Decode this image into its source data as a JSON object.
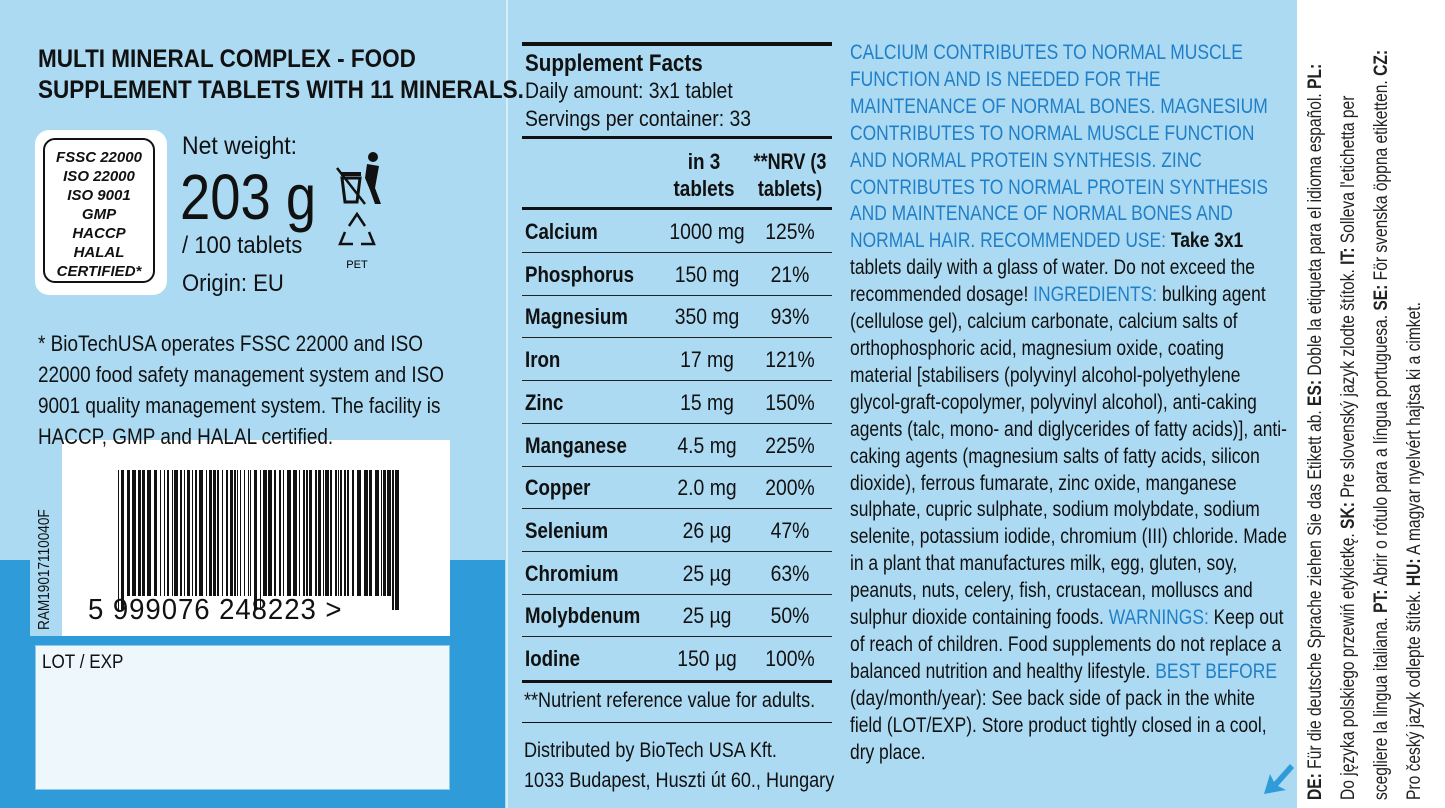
{
  "left": {
    "title": [
      "MULTI MINERAL COMPLEX - FOOD",
      "SUPPLEMENT TABLETS WITH 11 MINERALS."
    ],
    "badge": [
      "FSSC 22000",
      "ISO 22000",
      "ISO 9001",
      "GMP",
      "HACCP",
      "HALAL",
      "CERTIFIED*"
    ],
    "net_weight_label": "Net weight:",
    "net_weight": "203 g",
    "count": "/ 100 tablets",
    "origin": "Origin: EU",
    "recycle_code": "PET",
    "footnote": "* BioTechUSA operates FSSC 22000 and ISO 22000 food safety management system and ISO 9001 quality management system. The facility is HACCP, GMP and HALAL certified.",
    "batch_code": "RAM19017110040F",
    "barcode_number": "5 999076 248223 >",
    "lot_label": "LOT / EXP"
  },
  "supplement_facts": {
    "title": "Supplement Facts",
    "daily_amount": "Daily amount: 3x1 tablet",
    "servings": "Servings per container: 33",
    "columns": [
      "in 3 tablets",
      "**NRV (3 tablets)"
    ],
    "rows": [
      [
        "Calcium",
        "1000 mg",
        "125%"
      ],
      [
        "Phosphorus",
        "150 mg",
        "21%"
      ],
      [
        "Magnesium",
        "350 mg",
        "93%"
      ],
      [
        "Iron",
        "17 mg",
        "121%"
      ],
      [
        "Zinc",
        "15 mg",
        "150%"
      ],
      [
        "Manganese",
        "4.5 mg",
        "225%"
      ],
      [
        "Copper",
        "2.0 mg",
        "200%"
      ],
      [
        "Selenium",
        "26 µg",
        "47%"
      ],
      [
        "Chromium",
        "25 µg",
        "63%"
      ],
      [
        "Molybdenum",
        "25 µg",
        "50%"
      ],
      [
        "Iodine",
        "150 µg",
        "100%"
      ]
    ],
    "footnote": "**Nutrient reference value for adults.",
    "distributor": [
      "Distributed by BioTech USA Kft.",
      "1033 Budapest, Huszti út 60., Hungary"
    ]
  },
  "right": {
    "segments": [
      {
        "text": "CALCIUM CONTRIBUTES TO NORMAL MUSCLE FUNCTION AND IS NEEDED FOR THE MAINTENANCE OF NORMAL BONES. MAGNESIUM CONTRIBUTES TO NORMAL MUSCLE FUNCTION AND NORMAL PROTEIN SYNTHESIS. ZINC CONTRIBUTES TO NORMAL PROTEIN SYNTHESIS AND MAINTENANCE OF NORMAL BONES AND NORMAL HAIR. RECOMMENDED USE:",
        "color": "#1f7fc8"
      },
      {
        "text": "Take 3x1",
        "color": "#111111",
        "weight": "bold"
      },
      {
        "text": "tablets daily with a glass of water. Do not exceed the recommended dosage!",
        "color": "#111111"
      },
      {
        "text": "INGREDIENTS:",
        "color": "#1f7fc8"
      },
      {
        "text": "bulking agent (cellulose gel), calcium carbonate, calcium salts of orthophosphoric acid, magnesium oxide, coating material [stabilisers (polyvinyl alcohol-polyethylene glycol-graft-copolymer, polyvinyl alcohol), anti-caking agents (talc, mono- and diglycerides of fatty acids)], anti-caking agents (magnesium salts of fatty acids, silicon dioxide), ferrous fumarate, zinc oxide, manganese sulphate, cupric sulphate, sodium molybdate, sodium selenite, potassium iodide, chromium (III) chloride. Made in a plant that manufactures milk, egg, gluten, soy, peanuts, nuts, celery, fish, crustacean, molluscs and sulphur dioxide containing foods.",
        "color": "#111111"
      },
      {
        "text": "WARNINGS:",
        "color": "#1f7fc8"
      },
      {
        "text": "Keep out of reach of children. Food supplements do not replace a balanced nutrition and healthy lifestyle.",
        "color": "#111111"
      },
      {
        "text": "BEST BEFORE",
        "color": "#1f7fc8"
      },
      {
        "text": "(day/month/year): See back side of pack in the white field (LOT/EXP). Store product tightly closed in a cool, dry place.",
        "color": "#111111"
      }
    ]
  },
  "language_strip": {
    "entries": [
      {
        "code": "DE:",
        "text": "Für die deutsche Sprache ziehen Sie das Etikett ab."
      },
      {
        "code": "ES:",
        "text": "Doble la etiqueta para el idioma español."
      },
      {
        "code": "PL:",
        "text": "Do języka polskiego przewiń etykietkę."
      },
      {
        "code": "SK:",
        "text": "Pre slovenský jazyk zlodte štítok."
      },
      {
        "code": "IT:",
        "text": "Solleva l'etichetta per scegliere la lingua italiana."
      },
      {
        "code": "PT:",
        "text": "Abrir o rótulo para a língua portuguesa."
      },
      {
        "code": "SE:",
        "text": "För svenska öppna etiketten."
      },
      {
        "code": "CZ:",
        "text": "Pro český jazyk odlepte štítek."
      },
      {
        "code": "HU:",
        "text": "A magyar nyelvért hajtsa ki a cimket."
      }
    ]
  }
}
